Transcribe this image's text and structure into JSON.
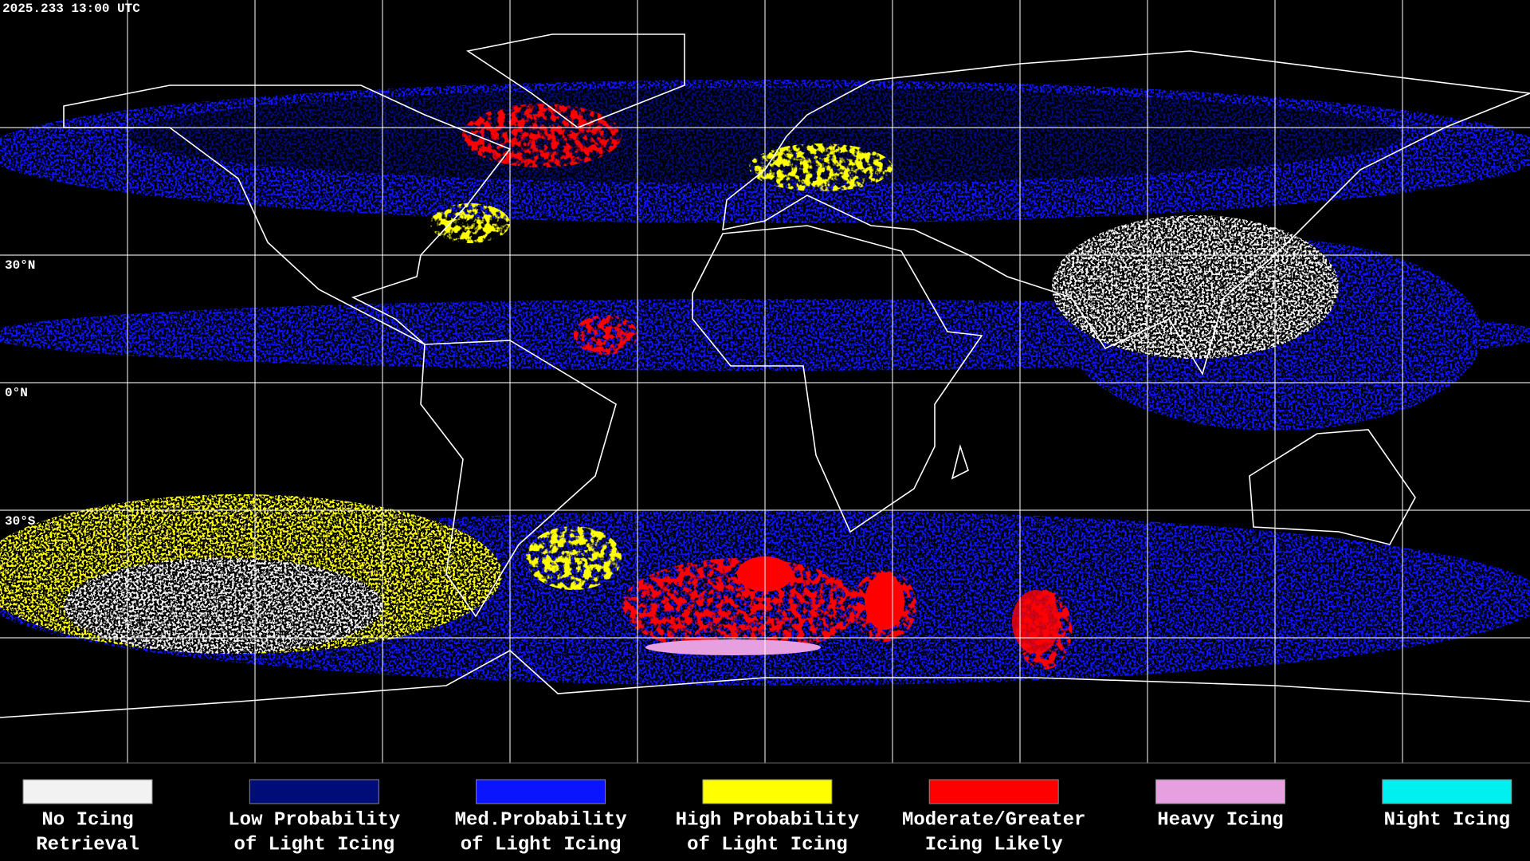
{
  "header": {
    "timestamp": "2025.233 13:00 UTC"
  },
  "map": {
    "lat_labels": [
      "30°N",
      "0°N",
      "30°S"
    ]
  },
  "legend": {
    "items": [
      {
        "color": "#f2f2f2",
        "label_lines": [
          "No Icing",
          "Retrieval"
        ]
      },
      {
        "color": "#000c78",
        "label_lines": [
          "Low Probability",
          "of Light Icing"
        ]
      },
      {
        "color": "#0a14ff",
        "label_lines": [
          "Med.Probability",
          "of Light Icing"
        ]
      },
      {
        "color": "#ffff00",
        "label_lines": [
          "High Probability",
          "of Light Icing"
        ]
      },
      {
        "color": "#ff0000",
        "label_lines": [
          "Moderate/Greater",
          "Icing Likely"
        ]
      },
      {
        "color": "#e6a0e0",
        "label_lines": [
          "Heavy Icing"
        ]
      },
      {
        "color": "#00f0f0",
        "label_lines": [
          "Night Icing"
        ]
      }
    ]
  }
}
